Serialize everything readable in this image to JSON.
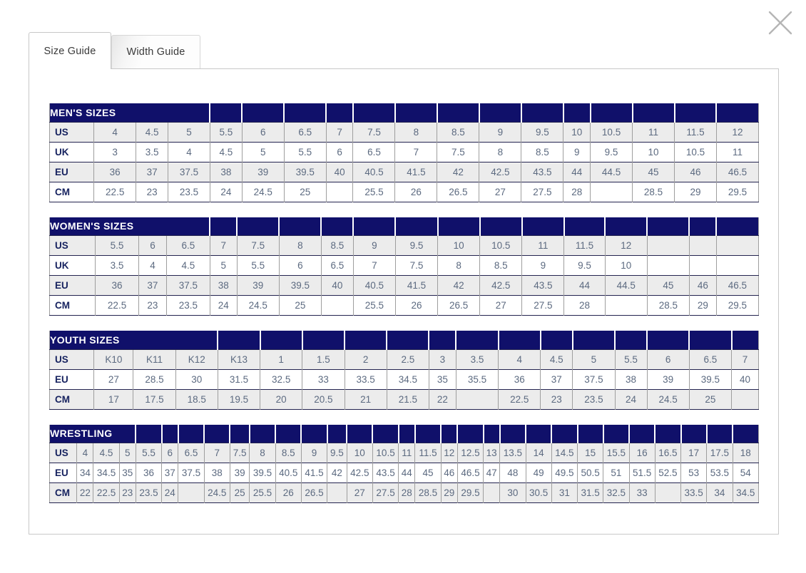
{
  "tabs": [
    {
      "label": "Size Guide",
      "active": true
    },
    {
      "label": "Width Guide",
      "active": false
    }
  ],
  "close_icon": "x",
  "colors": {
    "header_navy": "#10106a",
    "row_alt_gray": "#ececec",
    "value_text": "#5c6a80",
    "label_text": "#16225f",
    "border_dark": "#23234f",
    "border_gray": "#9e9e9e",
    "panel_border": "#c8c8c8",
    "close_gray": "#b5b5b5"
  },
  "tables": [
    {
      "id": "mens",
      "title": "MEN'S SIZES",
      "title_colspan": 4,
      "columns": 17,
      "rows": [
        {
          "label": "US",
          "values": [
            "4",
            "4.5",
            "5",
            "5.5",
            "6",
            "6.5",
            "7",
            "7.5",
            "8",
            "8.5",
            "9",
            "9.5",
            "10",
            "10.5",
            "11",
            "11.5",
            "12"
          ]
        },
        {
          "label": "UK",
          "values": [
            "3",
            "3.5",
            "4",
            "4.5",
            "5",
            "5.5",
            "6",
            "6.5",
            "7",
            "7.5",
            "8",
            "8.5",
            "9",
            "9.5",
            "10",
            "10.5",
            "11"
          ]
        },
        {
          "label": "EU",
          "values": [
            "36",
            "37",
            "37.5",
            "38",
            "39",
            "39.5",
            "40",
            "40.5",
            "41.5",
            "42",
            "42.5",
            "43.5",
            "44",
            "44.5",
            "45",
            "46",
            "46.5"
          ]
        },
        {
          "label": "CM",
          "values": [
            "22.5",
            "23",
            "23.5",
            "24",
            "24.5",
            "25",
            "",
            "25.5",
            "26",
            "26.5",
            "27",
            "27.5",
            "28",
            "",
            "28.5",
            "29",
            "29.5"
          ]
        }
      ]
    },
    {
      "id": "womens",
      "title": "WOMEN'S SIZES",
      "title_colspan": 4,
      "columns": 17,
      "rows": [
        {
          "label": "US",
          "values": [
            "5.5",
            "6",
            "6.5",
            "7",
            "7.5",
            "8",
            "8.5",
            "9",
            "9.5",
            "10",
            "10.5",
            "11",
            "11.5",
            "12",
            "",
            "",
            ""
          ]
        },
        {
          "label": "UK",
          "values": [
            "3.5",
            "4",
            "4.5",
            "5",
            "5.5",
            "6",
            "6.5",
            "7",
            "7.5",
            "8",
            "8.5",
            "9",
            "9.5",
            "10",
            "",
            "",
            ""
          ]
        },
        {
          "label": "EU",
          "values": [
            "36",
            "37",
            "37.5",
            "38",
            "39",
            "39.5",
            "40",
            "40.5",
            "41.5",
            "42",
            "42.5",
            "43.5",
            "44",
            "44.5",
            "45",
            "46",
            "46.5"
          ]
        },
        {
          "label": "CM",
          "values": [
            "22.5",
            "23",
            "23.5",
            "24",
            "24.5",
            "25",
            "",
            "25.5",
            "26",
            "26.5",
            "27",
            "27.5",
            "28",
            "",
            "28.5",
            "29",
            "29.5"
          ]
        }
      ]
    },
    {
      "id": "youth",
      "title": "YOUTH SIZES",
      "title_colspan": 4,
      "columns": 17,
      "rows": [
        {
          "label": "US",
          "values": [
            "K10",
            "K11",
            "K12",
            "K13",
            "1",
            "1.5",
            "2",
            "2.5",
            "3",
            "3.5",
            "4",
            "4.5",
            "5",
            "5.5",
            "6",
            "6.5",
            "7"
          ]
        },
        {
          "label": "EU",
          "values": [
            "27",
            "28.5",
            "30",
            "31.5",
            "32.5",
            "33",
            "33.5",
            "34.5",
            "35",
            "35.5",
            "36",
            "37",
            "37.5",
            "38",
            "39",
            "39.5",
            "40"
          ]
        },
        {
          "label": "CM",
          "values": [
            "17",
            "17.5",
            "18.5",
            "19.5",
            "20",
            "20.5",
            "21",
            "21.5",
            "22",
            "",
            "22.5",
            "23",
            "23.5",
            "24",
            "24.5",
            "25",
            ""
          ]
        }
      ]
    },
    {
      "id": "wrestling",
      "title": "WRESTLING",
      "title_colspan": 4,
      "columns": 29,
      "rows": [
        {
          "label": "US",
          "values": [
            "4",
            "4.5",
            "5",
            "5.5",
            "6",
            "6.5",
            "7",
            "7.5",
            "8",
            "8.5",
            "9",
            "9.5",
            "10",
            "10.5",
            "11",
            "11.5",
            "12",
            "12.5",
            "13",
            "13.5",
            "14",
            "14.5",
            "15",
            "15.5",
            "16",
            "16.5",
            "17",
            "17.5",
            "18"
          ]
        },
        {
          "label": "EU",
          "values": [
            "34",
            "34.5",
            "35",
            "36",
            "37",
            "37.5",
            "38",
            "39",
            "39.5",
            "40.5",
            "41.5",
            "42",
            "42.5",
            "43.5",
            "44",
            "45",
            "46",
            "46.5",
            "47",
            "48",
            "49",
            "49.5",
            "50.5",
            "51",
            "51.5",
            "52.5",
            "53",
            "53.5",
            "54"
          ]
        },
        {
          "label": "CM",
          "values": [
            "22",
            "22.5",
            "23",
            "23.5",
            "24",
            "",
            "24.5",
            "25",
            "25.5",
            "26",
            "26.5",
            "",
            "27",
            "27.5",
            "28",
            "28.5",
            "29",
            "29.5",
            "",
            "30",
            "30.5",
            "31",
            "31.5",
            "32.5",
            "33",
            "",
            "33.5",
            "34",
            "34.5"
          ]
        }
      ]
    }
  ]
}
